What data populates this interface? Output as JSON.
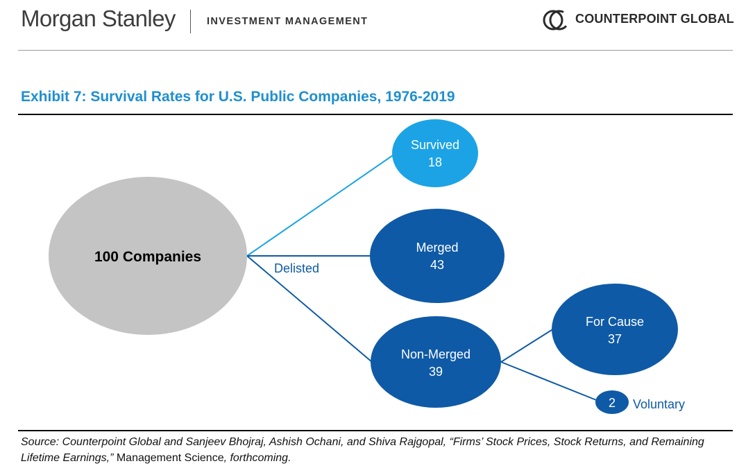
{
  "header": {
    "brand": "Morgan Stanley",
    "division": "INVESTMENT MANAGEMENT",
    "partner": "COUNTERPOINT GLOBAL",
    "partner_icon": "counterpoint-logo-icon"
  },
  "exhibit": {
    "title": "Exhibit 7: Survival Rates for U.S. Public Companies, 1976-2019"
  },
  "diagram": {
    "root": {
      "label": "100 Companies"
    },
    "branch_label": "Delisted",
    "nodes": {
      "survived": {
        "label": "Survived",
        "value": "18"
      },
      "merged": {
        "label": "Merged",
        "value": "43"
      },
      "non_merged": {
        "label": "Non-Merged",
        "value": "39"
      },
      "for_cause": {
        "label": "For Cause",
        "value": "37"
      },
      "voluntary": {
        "label": "Voluntary",
        "value": "2"
      }
    },
    "colors": {
      "root": "#c4c4c4",
      "survived": "#1ba3e6",
      "dark": "#0e5aa6",
      "line_light": "#1ba3e6",
      "line_dark": "#0e5aa6"
    }
  },
  "source": {
    "part1": "Source: Counterpoint Global and Sanjeev Bhojraj, Ashish Ochani, and Shiva Rajgopal, “Firms’ Stock Prices, Stock Returns, and Remaining Lifetime Earnings,”",
    "part2": " Management Science",
    "part3": ", forthcoming."
  }
}
